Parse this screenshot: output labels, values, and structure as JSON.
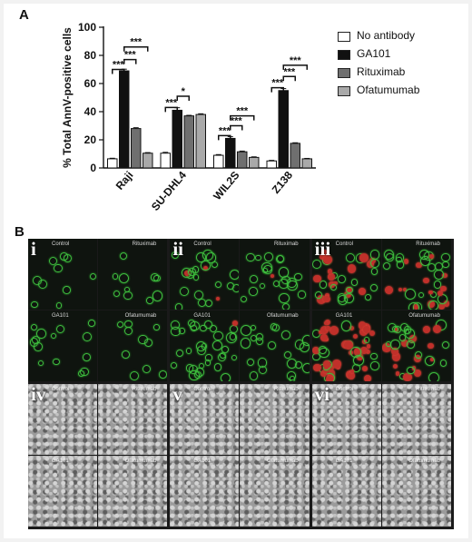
{
  "panel_labels": {
    "a": "A",
    "b": "B"
  },
  "chart_data": {
    "type": "bar",
    "title": "",
    "xlabel": "",
    "ylabel": "% Total AnnV-positive cells",
    "ylim": [
      0,
      100
    ],
    "yticks": [
      0,
      20,
      40,
      60,
      80,
      100
    ],
    "categories": [
      "Raji",
      "SU-DHL4",
      "WIL2S",
      "Z138"
    ],
    "series": [
      {
        "name": "No antibody",
        "color": "#ffffff",
        "values": [
          6.5,
          10.5,
          9,
          5
        ],
        "errors": [
          0.4,
          0.6,
          0.5,
          0.4
        ]
      },
      {
        "name": "GA101",
        "color": "#111111",
        "values": [
          69,
          41,
          21,
          55
        ],
        "errors": [
          1.2,
          1.8,
          1.2,
          1.4
        ]
      },
      {
        "name": "Rituximab",
        "color": "#6f6f6f",
        "values": [
          28,
          37,
          11.5,
          17.5
        ],
        "errors": [
          0.6,
          0.4,
          0.5,
          0.4
        ]
      },
      {
        "name": "Ofatumumab",
        "color": "#a9a9a9",
        "values": [
          10.5,
          38,
          7.5,
          6.5
        ],
        "errors": [
          0.4,
          0.5,
          0.4,
          0.3
        ]
      }
    ],
    "significance": [
      {
        "category": 0,
        "from": 0,
        "to": 1,
        "level": 70,
        "label": "***"
      },
      {
        "category": 0,
        "from": 1,
        "to": 2,
        "level": 77,
        "label": "***"
      },
      {
        "category": 0,
        "from": 1,
        "to": 3,
        "level": 86,
        "label": "***"
      },
      {
        "category": 1,
        "from": 0,
        "to": 1,
        "level": 43,
        "label": "***"
      },
      {
        "category": 1,
        "from": 1,
        "to": 2,
        "level": 51,
        "label": "*"
      },
      {
        "category": 2,
        "from": 0,
        "to": 1,
        "level": 23,
        "label": "***"
      },
      {
        "category": 2,
        "from": 1,
        "to": 2,
        "level": 30,
        "label": "***"
      },
      {
        "category": 2,
        "from": 1,
        "to": 3,
        "level": 37,
        "label": "***"
      },
      {
        "category": 3,
        "from": 0,
        "to": 1,
        "level": 57,
        "label": "***"
      },
      {
        "category": 3,
        "from": 1,
        "to": 2,
        "level": 65,
        "label": "***"
      },
      {
        "category": 3,
        "from": 1,
        "to": 3,
        "level": 73,
        "label": "***"
      }
    ]
  },
  "micrographs": {
    "groups": [
      {
        "numeral": "i",
        "type": "fluorescence",
        "intensity": 0.2,
        "red": 0.0
      },
      {
        "numeral": "ii",
        "type": "fluorescence",
        "intensity": 0.6,
        "red": 0.05
      },
      {
        "numeral": "iii",
        "type": "fluorescence",
        "intensity": 1.0,
        "red": 0.55
      },
      {
        "numeral": "iv",
        "type": "brightfield",
        "intensity": 0,
        "red": 0
      },
      {
        "numeral": "v",
        "type": "brightfield",
        "intensity": 0,
        "red": 0
      },
      {
        "numeral": "vi",
        "type": "brightfield",
        "intensity": 0,
        "red": 0
      }
    ],
    "quadrant_labels": [
      "Control",
      "Rituximab",
      "GA101",
      "Ofatumumab"
    ]
  }
}
